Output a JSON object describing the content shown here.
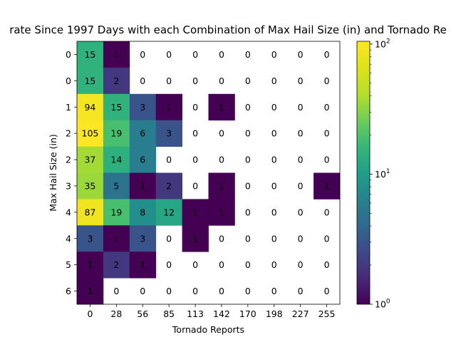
{
  "chart_data": {
    "type": "heatmap",
    "title": "rate Since 1997 Days with each Combination of Max Hail Size (in) and Tornado Re",
    "xlabel": "Tornado Reports",
    "ylabel": "Max Hail Size (in)",
    "x_tick_labels": [
      "0",
      "28",
      "56",
      "85",
      "113",
      "142",
      "170",
      "198",
      "227",
      "255"
    ],
    "y_tick_labels": [
      "0",
      "0",
      "1",
      "2",
      "2",
      "3",
      "4",
      "4",
      "5",
      "6"
    ],
    "values": [
      [
        15,
        1,
        0,
        0,
        0,
        0,
        0,
        0,
        0,
        0
      ],
      [
        15,
        2,
        0,
        0,
        0,
        0,
        0,
        0,
        0,
        0
      ],
      [
        94,
        15,
        3,
        1,
        0,
        1,
        0,
        0,
        0,
        0
      ],
      [
        105,
        19,
        6,
        3,
        0,
        0,
        0,
        0,
        0,
        0
      ],
      [
        37,
        14,
        6,
        0,
        0,
        0,
        0,
        0,
        0,
        0
      ],
      [
        35,
        5,
        1,
        2,
        0,
        1,
        0,
        0,
        0,
        1
      ],
      [
        87,
        19,
        8,
        12,
        1,
        1,
        0,
        0,
        0,
        0
      ],
      [
        3,
        1,
        3,
        0,
        1,
        0,
        0,
        0,
        0,
        0
      ],
      [
        1,
        2,
        1,
        0,
        0,
        0,
        0,
        0,
        0,
        0
      ],
      [
        1,
        0,
        0,
        0,
        0,
        0,
        0,
        0,
        0,
        0
      ]
    ],
    "color_scale": "log",
    "colormap": "viridis",
    "zero_cells": "blank",
    "color_range": [
      1,
      105
    ],
    "colorbar_tick_labels": [
      "10^0",
      "10^1",
      "10^2"
    ],
    "grid": false
  }
}
